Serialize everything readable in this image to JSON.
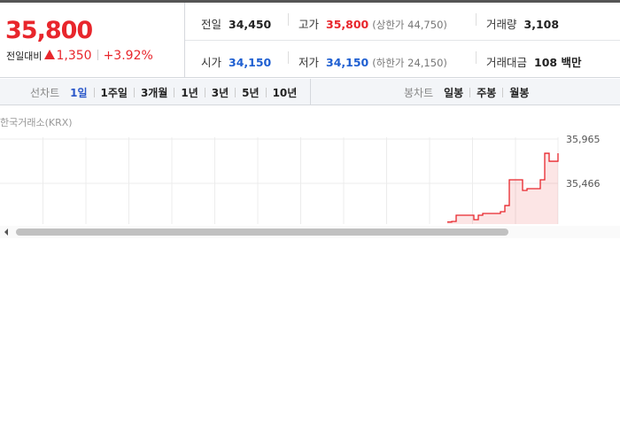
{
  "quote": {
    "price": "35,800",
    "change_label": "전일대비",
    "change": "1,350",
    "change_pct": "+3.92%"
  },
  "stats": [
    [
      {
        "label": "전일",
        "value": "34,450"
      },
      {
        "label": "고가",
        "value": "35,800",
        "limit": "(상한가 44,750)"
      },
      {
        "label": "거래량",
        "value": "3,108"
      }
    ],
    [
      {
        "label": "시가",
        "value": "34,150"
      },
      {
        "label": "저가",
        "value": "34,150",
        "limit": "(하한가 24,150)"
      },
      {
        "label": "거래대금",
        "value": "108 백만"
      }
    ]
  ],
  "tabs": {
    "line_label": "선차트",
    "line": [
      "1일",
      "1주일",
      "3개월",
      "1년",
      "3년",
      "5년",
      "10년"
    ],
    "line_selected": 0,
    "candle_label": "봉차트",
    "candle": [
      "일봉",
      "주봉",
      "월봉"
    ]
  },
  "chart": {
    "source": "한국거래소(KRX)",
    "color": "#e8262c",
    "values": [
      35030,
      35037,
      35107,
      35107,
      35107,
      35107,
      35057,
      35107,
      35127,
      35127,
      35127,
      35127,
      35147,
      35216,
      35506,
      35506,
      35506,
      35386,
      35406,
      35406,
      35406,
      35506,
      35805,
      35715,
      35715,
      35805
    ],
    "ylim": [
      35007,
      36035
    ],
    "yticks": [
      {
        "value": 35965,
        "label": "35,965"
      },
      {
        "value": 35466,
        "label": "35,466"
      }
    ]
  }
}
